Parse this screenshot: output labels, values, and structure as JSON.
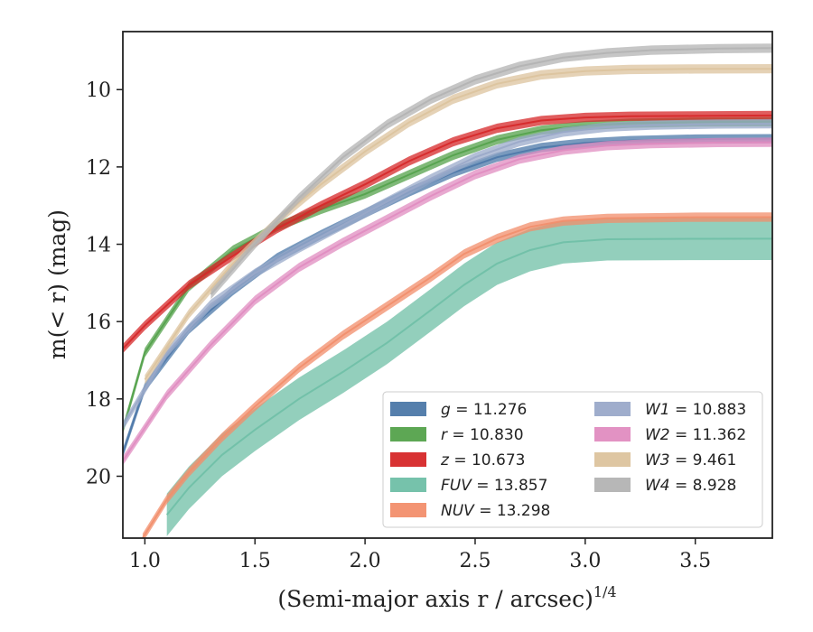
{
  "chart_data": {
    "type": "line",
    "title": "",
    "xlabel": "(Semi-major axis r / arcsec)",
    "xlabel_exponent": "1/4",
    "ylabel": "m(< r) (mag)",
    "xlim": [
      0.9,
      3.85
    ],
    "ylim": [
      21.6,
      8.5
    ],
    "y_inverted": true,
    "x_ticks": [
      1.0,
      1.5,
      2.0,
      2.5,
      3.0,
      3.5
    ],
    "x_tick_labels": [
      "1.0",
      "1.5",
      "2.0",
      "2.5",
      "3.0",
      "3.5"
    ],
    "y_ticks": [
      10,
      12,
      14,
      16,
      18,
      20
    ],
    "y_tick_labels": [
      "10",
      "12",
      "14",
      "16",
      "18",
      "20"
    ],
    "grid": false,
    "legend_position": "bottom-right",
    "legend_columns": 2,
    "series": [
      {
        "name": "g = 11.276",
        "sym": "g",
        "val": "= 11.276",
        "color": "#4c78a8",
        "band": 0.12,
        "x": [
          0.9,
          1.0,
          1.2,
          1.4,
          1.6,
          1.8,
          2.0,
          2.2,
          2.4,
          2.6,
          2.8,
          3.0,
          3.2,
          3.5,
          3.85
        ],
        "y": [
          19.4,
          17.7,
          16.2,
          15.2,
          14.35,
          13.75,
          13.2,
          12.65,
          12.15,
          11.75,
          11.5,
          11.38,
          11.32,
          11.28,
          11.27
        ]
      },
      {
        "name": "r = 10.830",
        "sym": "r",
        "val": "= 10.830",
        "color": "#54a24b",
        "band": 0.12,
        "x": [
          0.9,
          1.0,
          1.2,
          1.4,
          1.6,
          1.8,
          2.0,
          2.2,
          2.4,
          2.6,
          2.8,
          3.0,
          3.2,
          3.5,
          3.85
        ],
        "y": [
          18.8,
          16.8,
          15.1,
          14.15,
          13.55,
          13.1,
          12.7,
          12.2,
          11.7,
          11.3,
          11.05,
          10.93,
          10.87,
          10.84,
          10.83
        ]
      },
      {
        "name": "z = 10.673",
        "sym": "z",
        "val": "= 10.673",
        "color": "#d62728",
        "band": 0.12,
        "x": [
          0.9,
          1.0,
          1.2,
          1.4,
          1.6,
          1.8,
          2.0,
          2.2,
          2.4,
          2.6,
          2.8,
          3.0,
          3.2,
          3.5,
          3.85
        ],
        "y": [
          16.7,
          16.1,
          15.05,
          14.3,
          13.6,
          13.0,
          12.45,
          11.85,
          11.35,
          11.0,
          10.8,
          10.72,
          10.69,
          10.68,
          10.67
        ]
      },
      {
        "name": "FUV = 13.857",
        "sym": "FUV",
        "val": "= 13.857",
        "color": "#6fbfa6",
        "band": 0.55,
        "x": [
          1.1,
          1.2,
          1.35,
          1.5,
          1.7,
          1.9,
          2.1,
          2.3,
          2.45,
          2.6,
          2.75,
          2.9,
          3.1,
          3.5,
          3.85
        ],
        "y": [
          21.0,
          20.3,
          19.45,
          18.8,
          18.0,
          17.3,
          16.55,
          15.7,
          15.05,
          14.5,
          14.15,
          13.95,
          13.87,
          13.86,
          13.857
        ]
      },
      {
        "name": "NUV = 13.298",
        "sym": "NUV",
        "val": "= 13.298",
        "color": "#f28e6b",
        "band": 0.12,
        "x": [
          0.99,
          1.1,
          1.2,
          1.35,
          1.5,
          1.7,
          1.9,
          2.1,
          2.3,
          2.45,
          2.6,
          2.75,
          2.9,
          3.1,
          3.5,
          3.85
        ],
        "y": [
          21.6,
          20.6,
          19.9,
          19.0,
          18.2,
          17.2,
          16.35,
          15.6,
          14.85,
          14.25,
          13.85,
          13.55,
          13.4,
          13.33,
          13.3,
          13.298
        ]
      },
      {
        "name": "W1 = 10.883",
        "sym": "W1",
        "val": "= 10.883",
        "color": "#9aa9c9",
        "band": 0.12,
        "x": [
          0.9,
          1.1,
          1.3,
          1.5,
          1.7,
          1.9,
          2.1,
          2.3,
          2.5,
          2.7,
          2.9,
          3.1,
          3.3,
          3.6,
          3.85
        ],
        "y": [
          18.7,
          16.8,
          15.55,
          14.75,
          14.1,
          13.5,
          12.9,
          12.3,
          11.75,
          11.35,
          11.1,
          10.97,
          10.92,
          10.89,
          10.883
        ]
      },
      {
        "name": "W2 = 11.362",
        "sym": "W2",
        "val": "= 11.362",
        "color": "#e08cc0",
        "band": 0.12,
        "x": [
          0.9,
          1.1,
          1.3,
          1.5,
          1.7,
          1.9,
          2.1,
          2.3,
          2.5,
          2.7,
          2.9,
          3.1,
          3.3,
          3.6,
          3.85
        ],
        "y": [
          19.6,
          17.9,
          16.6,
          15.45,
          14.6,
          13.95,
          13.35,
          12.75,
          12.2,
          11.8,
          11.57,
          11.45,
          11.4,
          11.37,
          11.362
        ]
      },
      {
        "name": "W3 = 9.461",
        "sym": "W3",
        "val": "= 9.461",
        "color": "#dcc39d",
        "band": 0.12,
        "x": [
          1.0,
          1.2,
          1.4,
          1.6,
          1.8,
          2.0,
          2.2,
          2.4,
          2.6,
          2.8,
          3.0,
          3.2,
          3.5,
          3.85
        ],
        "y": [
          17.5,
          15.8,
          14.5,
          13.4,
          12.45,
          11.6,
          10.85,
          10.25,
          9.85,
          9.62,
          9.52,
          9.48,
          9.465,
          9.461
        ]
      },
      {
        "name": "W4 = 8.928",
        "sym": "W4",
        "val": "= 8.928",
        "color": "#b3b3b3",
        "band": 0.12,
        "x": [
          1.3,
          1.5,
          1.7,
          1.9,
          2.1,
          2.3,
          2.5,
          2.7,
          2.9,
          3.1,
          3.3,
          3.6,
          3.85
        ],
        "y": [
          15.3,
          14.0,
          12.8,
          11.75,
          10.9,
          10.25,
          9.75,
          9.4,
          9.17,
          9.05,
          8.98,
          8.94,
          8.928
        ]
      }
    ]
  }
}
